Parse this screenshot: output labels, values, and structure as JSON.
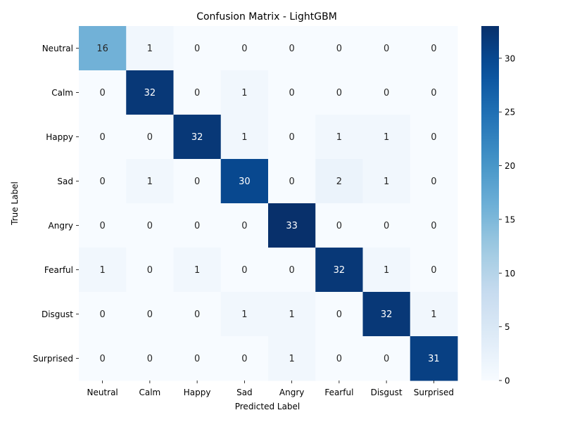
{
  "chart_data": {
    "type": "heatmap",
    "title": "Confusion Matrix - LightGBM",
    "xlabel": "Predicted Label",
    "ylabel": "True Label",
    "x_categories": [
      "Neutral",
      "Calm",
      "Happy",
      "Sad",
      "Angry",
      "Fearful",
      "Disgust",
      "Surprised"
    ],
    "y_categories": [
      "Neutral",
      "Calm",
      "Happy",
      "Sad",
      "Angry",
      "Fearful",
      "Disgust",
      "Surprised"
    ],
    "matrix": [
      [
        16,
        1,
        0,
        0,
        0,
        0,
        0,
        0
      ],
      [
        0,
        32,
        0,
        1,
        0,
        0,
        0,
        0
      ],
      [
        0,
        0,
        32,
        1,
        0,
        1,
        1,
        0
      ],
      [
        0,
        1,
        0,
        30,
        0,
        2,
        1,
        0
      ],
      [
        0,
        0,
        0,
        0,
        33,
        0,
        0,
        0
      ],
      [
        1,
        0,
        1,
        0,
        0,
        32,
        1,
        0
      ],
      [
        0,
        0,
        0,
        1,
        1,
        0,
        32,
        1
      ],
      [
        0,
        0,
        0,
        0,
        1,
        0,
        0,
        31
      ]
    ],
    "colormap": "Blues",
    "vmin": 0,
    "vmax": 33,
    "colorbar_ticks": [
      0,
      5,
      10,
      15,
      20,
      25,
      30
    ],
    "light_text_color": "#ffffff",
    "dark_text_color": "#262626"
  }
}
